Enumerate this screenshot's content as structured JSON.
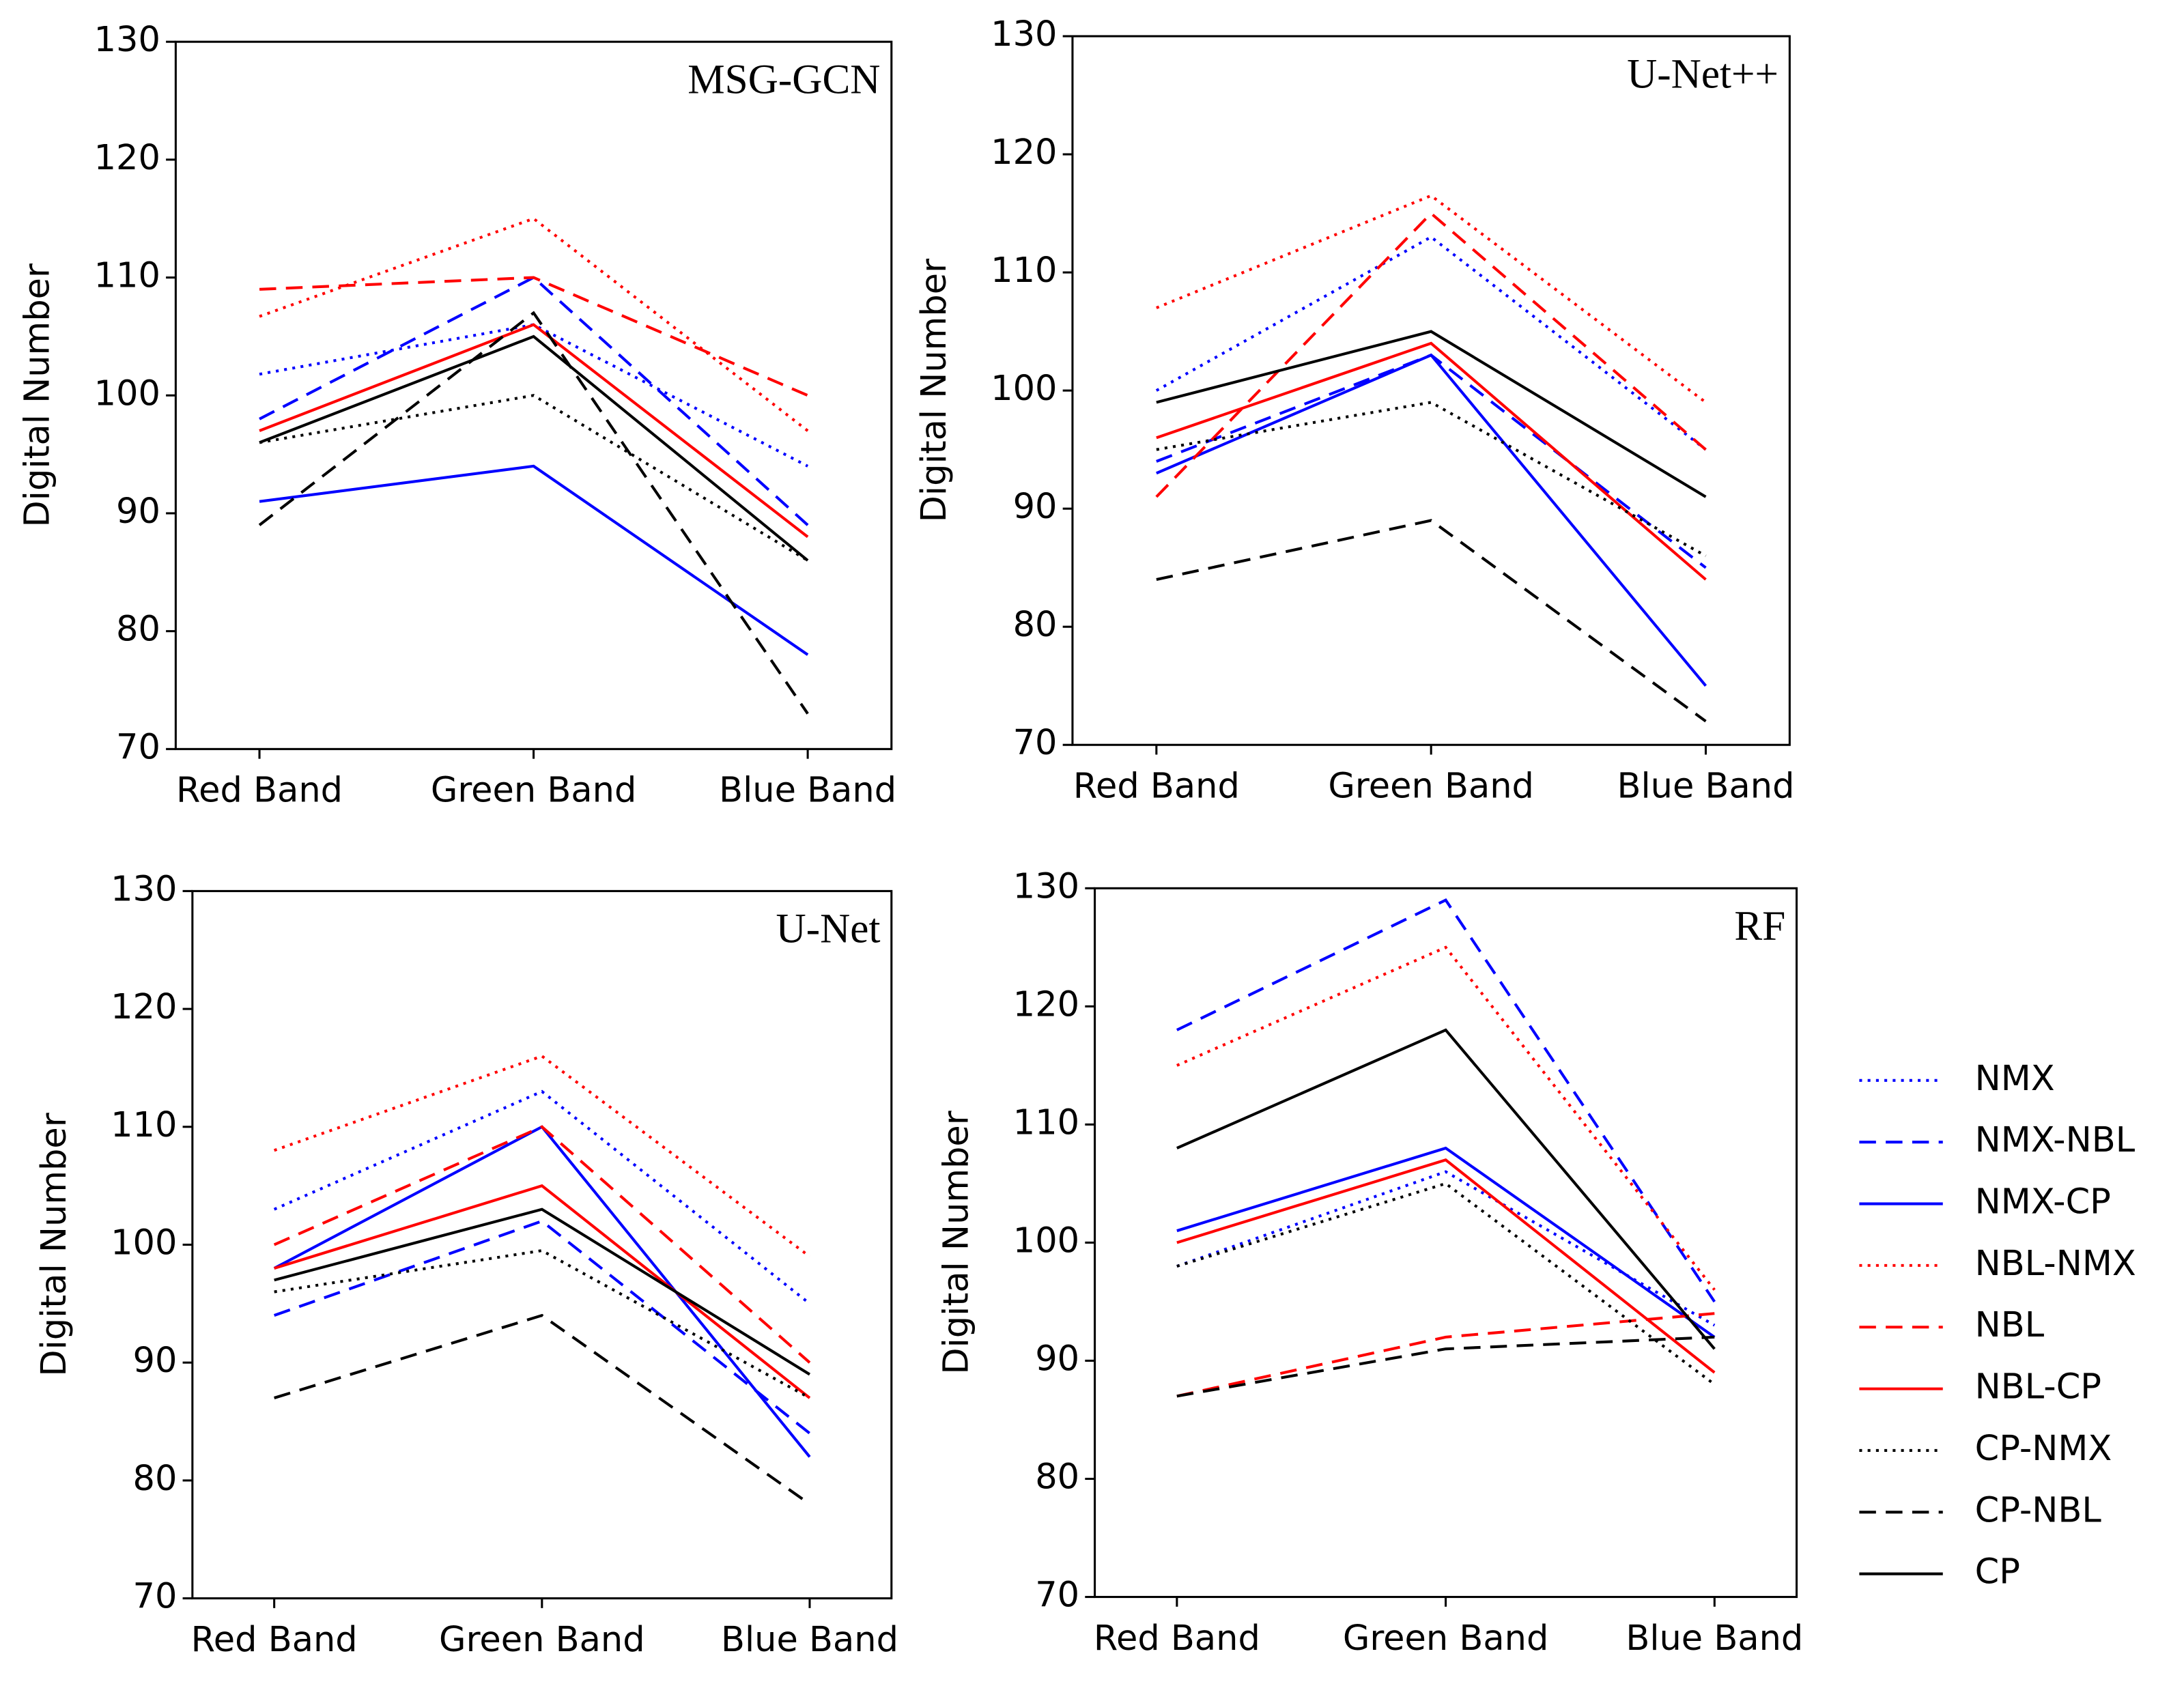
{
  "chart_data": [
    {
      "type": "line",
      "title": "MSG-GCN",
      "ylabel": "Digital Number",
      "categories": [
        "Red Band",
        "Green Band",
        "Blue Band"
      ],
      "ylim": [
        70,
        130
      ],
      "yticks": [
        70,
        80,
        90,
        100,
        110,
        120,
        130
      ],
      "series": [
        {
          "name": "NMX",
          "color": "#0000ff",
          "dash": "dotted",
          "values": [
            101.8,
            106,
            94
          ]
        },
        {
          "name": "NMX-NBL",
          "color": "#0000ff",
          "dash": "dashed",
          "values": [
            98,
            110,
            89
          ]
        },
        {
          "name": "NMX-CP",
          "color": "#0000ff",
          "dash": "solid",
          "values": [
            91,
            94,
            78
          ]
        },
        {
          "name": "NBL-NMX",
          "color": "#ff0000",
          "dash": "dotted",
          "values": [
            106.7,
            115,
            97
          ]
        },
        {
          "name": "NBL",
          "color": "#ff0000",
          "dash": "dashed",
          "values": [
            109,
            110,
            100
          ]
        },
        {
          "name": "NBL-CP",
          "color": "#ff0000",
          "dash": "solid",
          "values": [
            97,
            106,
            88
          ]
        },
        {
          "name": "CP-NMX",
          "color": "#000000",
          "dash": "dotted",
          "values": [
            96,
            100,
            86
          ]
        },
        {
          "name": "CP-NBL",
          "color": "#000000",
          "dash": "dashed",
          "values": [
            89,
            107,
            73
          ]
        },
        {
          "name": "CP",
          "color": "#000000",
          "dash": "solid",
          "values": [
            96,
            105,
            86
          ]
        }
      ]
    },
    {
      "type": "line",
      "title": "U-Net++",
      "ylabel": "Digital Number",
      "categories": [
        "Red Band",
        "Green Band",
        "Blue Band"
      ],
      "ylim": [
        70,
        130
      ],
      "yticks": [
        70,
        80,
        90,
        100,
        110,
        120,
        130
      ],
      "series": [
        {
          "name": "NMX",
          "color": "#0000ff",
          "dash": "dotted",
          "values": [
            100,
            113,
            95
          ]
        },
        {
          "name": "NMX-NBL",
          "color": "#0000ff",
          "dash": "dashed",
          "values": [
            94,
            103,
            85
          ]
        },
        {
          "name": "NMX-CP",
          "color": "#0000ff",
          "dash": "solid",
          "values": [
            93,
            103,
            75
          ]
        },
        {
          "name": "NBL-NMX",
          "color": "#ff0000",
          "dash": "dotted",
          "values": [
            107,
            116.5,
            99
          ]
        },
        {
          "name": "NBL",
          "color": "#ff0000",
          "dash": "dashed",
          "values": [
            91,
            115,
            95
          ]
        },
        {
          "name": "NBL-CP",
          "color": "#ff0000",
          "dash": "solid",
          "values": [
            96,
            104,
            84
          ]
        },
        {
          "name": "CP-NMX",
          "color": "#000000",
          "dash": "dotted",
          "values": [
            95,
            99,
            86
          ]
        },
        {
          "name": "CP-NBL",
          "color": "#000000",
          "dash": "dashed",
          "values": [
            84,
            89,
            72
          ]
        },
        {
          "name": "CP",
          "color": "#000000",
          "dash": "solid",
          "values": [
            99,
            105,
            91
          ]
        }
      ]
    },
    {
      "type": "line",
      "title": "U-Net",
      "ylabel": "Digital Number",
      "categories": [
        "Red Band",
        "Green Band",
        "Blue Band"
      ],
      "ylim": [
        70,
        130
      ],
      "yticks": [
        70,
        80,
        90,
        100,
        110,
        120,
        130
      ],
      "series": [
        {
          "name": "NMX",
          "color": "#0000ff",
          "dash": "dotted",
          "values": [
            103,
            113,
            95
          ]
        },
        {
          "name": "NMX-NBL",
          "color": "#0000ff",
          "dash": "dashed",
          "values": [
            94,
            102,
            84
          ]
        },
        {
          "name": "NMX-CP",
          "color": "#0000ff",
          "dash": "solid",
          "values": [
            98,
            110,
            82
          ]
        },
        {
          "name": "NBL-NMX",
          "color": "#ff0000",
          "dash": "dotted",
          "values": [
            108,
            116,
            99
          ]
        },
        {
          "name": "NBL",
          "color": "#ff0000",
          "dash": "dashed",
          "values": [
            100,
            110,
            90
          ]
        },
        {
          "name": "NBL-CP",
          "color": "#ff0000",
          "dash": "solid",
          "values": [
            98,
            105,
            87
          ]
        },
        {
          "name": "CP-NMX",
          "color": "#000000",
          "dash": "dotted",
          "values": [
            96,
            99.5,
            87
          ]
        },
        {
          "name": "CP-NBL",
          "color": "#000000",
          "dash": "dashed",
          "values": [
            87,
            94,
            78
          ]
        },
        {
          "name": "CP",
          "color": "#000000",
          "dash": "solid",
          "values": [
            97,
            103,
            89
          ]
        }
      ]
    },
    {
      "type": "line",
      "title": "RF",
      "ylabel": "Digital Number",
      "categories": [
        "Red Band",
        "Green Band",
        "Blue Band"
      ],
      "ylim": [
        70,
        130
      ],
      "yticks": [
        70,
        80,
        90,
        100,
        110,
        120,
        130
      ],
      "series": [
        {
          "name": "NMX",
          "color": "#0000ff",
          "dash": "dotted",
          "values": [
            98,
            106,
            93
          ]
        },
        {
          "name": "NMX-NBL",
          "color": "#0000ff",
          "dash": "dashed",
          "values": [
            118,
            129,
            95
          ]
        },
        {
          "name": "NMX-CP",
          "color": "#0000ff",
          "dash": "solid",
          "values": [
            101,
            108,
            92
          ]
        },
        {
          "name": "NBL-NMX",
          "color": "#ff0000",
          "dash": "dotted",
          "values": [
            115,
            125,
            96
          ]
        },
        {
          "name": "NBL",
          "color": "#ff0000",
          "dash": "dashed",
          "values": [
            87,
            92,
            94
          ]
        },
        {
          "name": "NBL-CP",
          "color": "#ff0000",
          "dash": "solid",
          "values": [
            100,
            107,
            89
          ]
        },
        {
          "name": "CP-NMX",
          "color": "#000000",
          "dash": "dotted",
          "values": [
            98,
            105,
            88
          ]
        },
        {
          "name": "CP-NBL",
          "color": "#000000",
          "dash": "dashed",
          "values": [
            87,
            91,
            92
          ]
        },
        {
          "name": "CP",
          "color": "#000000",
          "dash": "solid",
          "values": [
            108,
            118,
            91
          ]
        }
      ]
    }
  ]
}
